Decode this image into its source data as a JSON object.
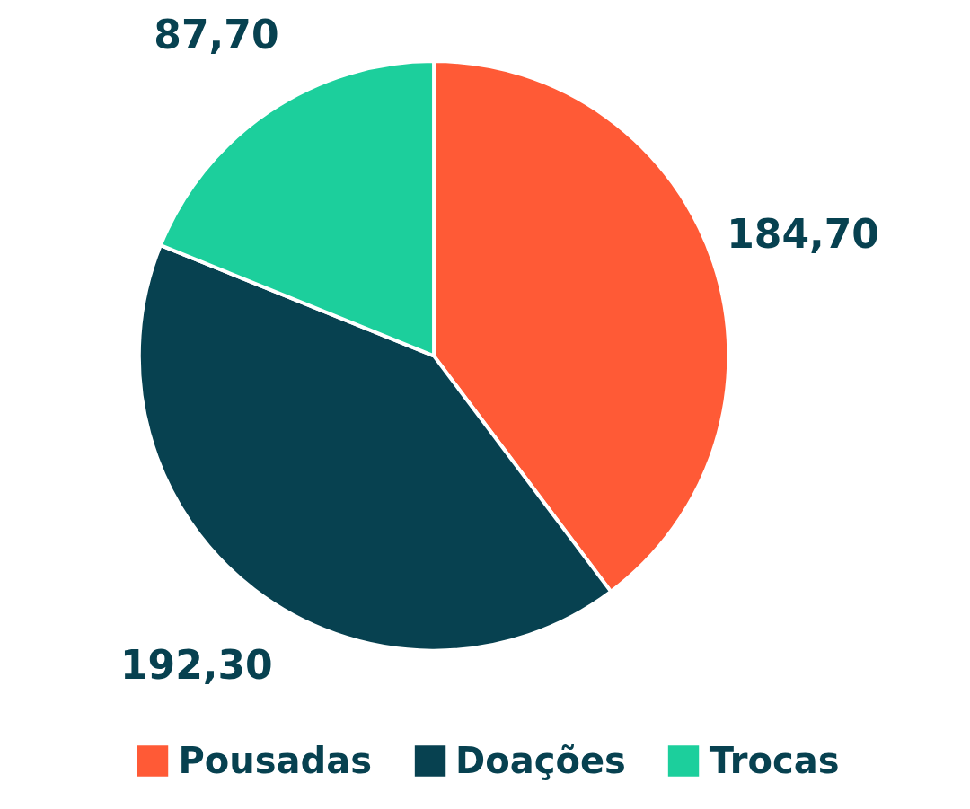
{
  "chart_data": {
    "type": "pie",
    "categories": [
      "Pousadas",
      "Doações",
      "Trocas"
    ],
    "values": [
      184.7,
      192.3,
      87.7
    ],
    "value_labels": [
      "184,70",
      "192,30",
      "87,70"
    ],
    "colors": [
      "#ff5a36",
      "#074150",
      "#1ccf9c"
    ],
    "legend": "bottom"
  }
}
